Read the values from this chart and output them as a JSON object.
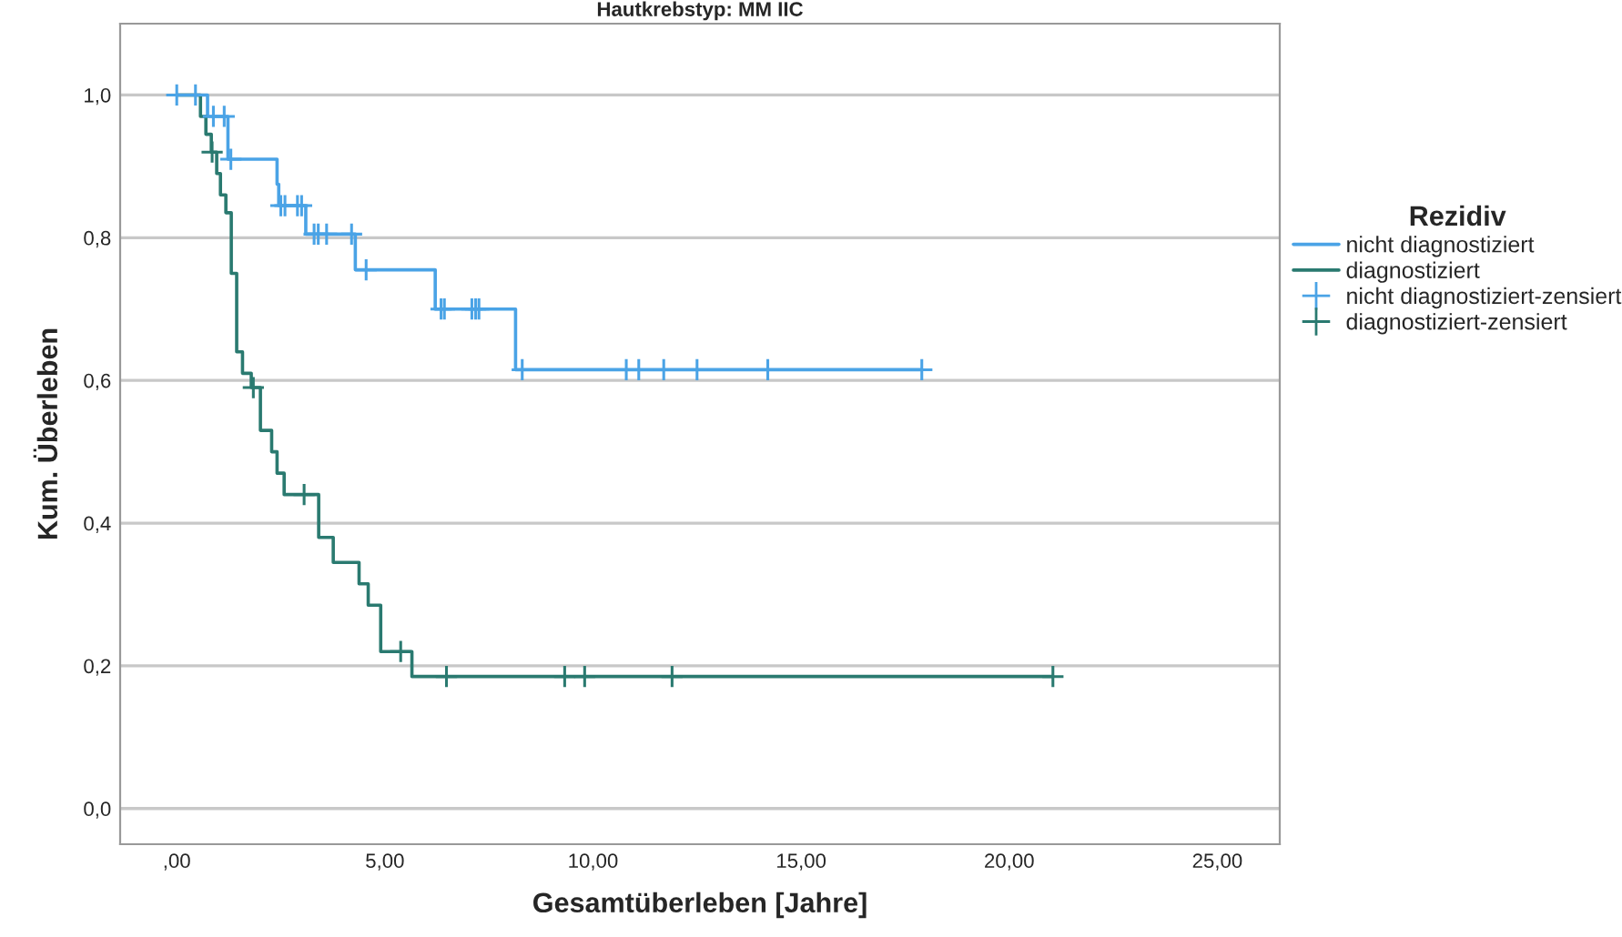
{
  "chart_data": {
    "type": "step",
    "title": "Hautkrebstyp: MM IIC",
    "xlabel": "Gesamtüberleben [Jahre]",
    "ylabel": "Kum. Überleben",
    "legend_title": "Rezidiv",
    "series": [
      {
        "name": "nicht diagnostiziert",
        "color": "#4aa3e6",
        "x": [
          0,
          0.74,
          1.23,
          2.41,
          2.45,
          3.1,
          4.29,
          6.21,
          8.14,
          17.9
        ],
        "values": [
          1.0,
          0.97,
          0.91,
          0.875,
          0.845,
          0.805,
          0.755,
          0.7,
          0.615,
          0.615
        ]
      },
      {
        "name": "diagnostiziert",
        "color": "#2a7a70",
        "x": [
          0,
          0.57,
          0.7,
          0.83,
          0.96,
          1.05,
          1.18,
          1.31,
          1.44,
          1.58,
          1.79,
          2.01,
          2.28,
          2.41,
          2.58,
          3.41,
          3.76,
          4.38,
          4.6,
          4.9,
          5.65,
          21.05
        ],
        "values": [
          1.0,
          0.97,
          0.945,
          0.92,
          0.89,
          0.86,
          0.835,
          0.75,
          0.64,
          0.61,
          0.59,
          0.53,
          0.5,
          0.47,
          0.44,
          0.38,
          0.345,
          0.315,
          0.285,
          0.22,
          0.185,
          0.185
        ]
      },
      {
        "name": "nicht diagnostiziert-zensiert",
        "type": "scatter",
        "marker": "cross",
        "color": "#4aa3e6",
        "x": [
          0,
          0.45,
          0.88,
          1.14,
          1.3,
          2.5,
          2.6,
          2.9,
          3.0,
          3.3,
          3.4,
          3.6,
          4.2,
          4.55,
          6.35,
          6.43,
          7.09,
          7.18,
          7.26,
          8.3,
          10.8,
          11.1,
          11.7,
          12.5,
          14.2,
          17.9
        ],
        "values": [
          1.0,
          1.0,
          0.97,
          0.97,
          0.91,
          0.845,
          0.845,
          0.845,
          0.845,
          0.805,
          0.805,
          0.805,
          0.805,
          0.755,
          0.7,
          0.7,
          0.7,
          0.7,
          0.7,
          0.615,
          0.615,
          0.615,
          0.615,
          0.615,
          0.615,
          0.615
        ]
      },
      {
        "name": "diagnostiziert-zensiert",
        "type": "scatter",
        "marker": "cross",
        "color": "#2a7a70",
        "x": [
          0.85,
          1.84,
          3.06,
          5.38,
          6.48,
          9.32,
          9.8,
          11.9,
          21.05
        ],
        "values": [
          0.92,
          0.59,
          0.44,
          0.22,
          0.185,
          0.185,
          0.185,
          0.185,
          0.185
        ]
      }
    ],
    "xlim": [
      -1.36,
      26.5
    ],
    "ylim": [
      -0.05,
      1.1
    ],
    "xticks": [
      {
        "value": 0,
        "label": ",00"
      },
      {
        "value": 5,
        "label": "5,00"
      },
      {
        "value": 10,
        "label": "10,00"
      },
      {
        "value": 15,
        "label": "15,00"
      },
      {
        "value": 20,
        "label": "20,00"
      },
      {
        "value": 25,
        "label": "25,00"
      }
    ],
    "yticks": [
      {
        "value": 0,
        "label": "0,0"
      },
      {
        "value": 0.2,
        "label": "0,2"
      },
      {
        "value": 0.4,
        "label": "0,4"
      },
      {
        "value": 0.6,
        "label": "0,6"
      },
      {
        "value": 0.8,
        "label": "0,8"
      },
      {
        "value": 1.0,
        "label": "1,0"
      }
    ],
    "grid": "y",
    "legend": "right"
  }
}
